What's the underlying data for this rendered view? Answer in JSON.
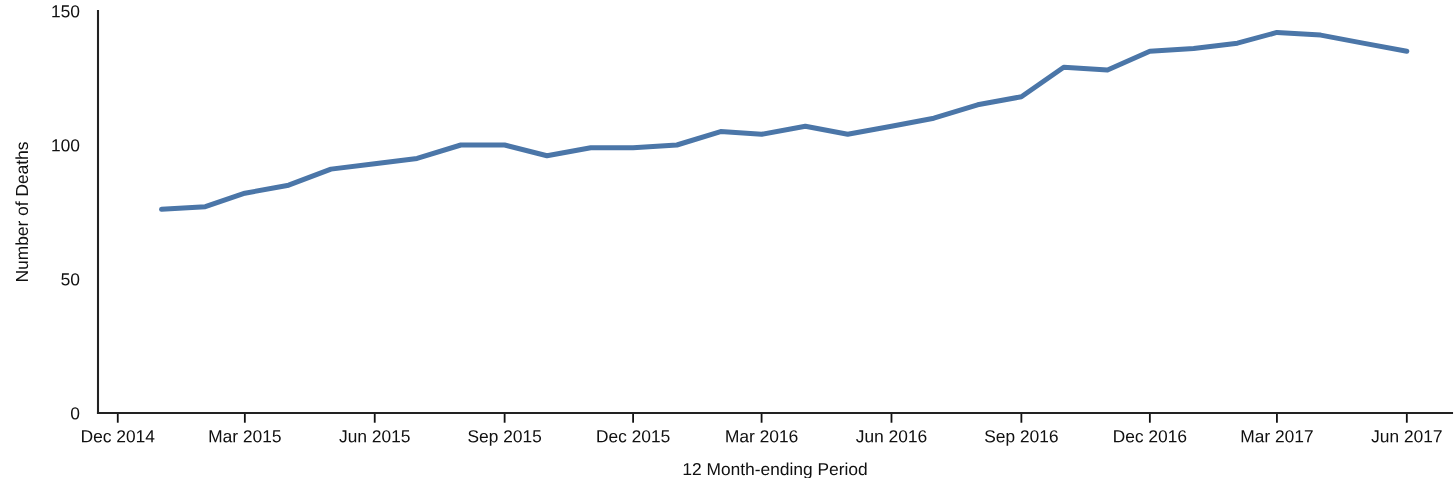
{
  "chart_data": {
    "type": "line",
    "xlabel": "12 Month-ending Period",
    "ylabel": "Number of Deaths",
    "x": [
      "2015-01",
      "2015-02",
      "2015-03",
      "2015-04",
      "2015-05",
      "2015-06",
      "2015-07",
      "2015-08",
      "2015-09",
      "2015-10",
      "2015-11",
      "2015-12",
      "2016-01",
      "2016-02",
      "2016-03",
      "2016-04",
      "2016-05",
      "2016-06",
      "2016-07",
      "2016-08",
      "2016-09",
      "2016-10",
      "2016-11",
      "2016-12",
      "2017-01",
      "2017-02",
      "2017-03",
      "2017-04",
      "2017-05",
      "2017-06"
    ],
    "series": [
      {
        "color": "#4b76a8",
        "values": [
          76,
          77,
          82,
          85,
          91,
          93,
          95,
          100,
          100,
          96,
          99,
          99,
          100,
          105,
          104,
          107,
          104,
          107,
          110,
          115,
          118,
          129,
          128,
          135,
          136,
          138,
          142,
          141,
          138,
          135
        ]
      }
    ],
    "xlim": [
      "2014-11-17",
      "2017-07-03"
    ],
    "xticks": [
      {
        "value": "2014-12",
        "label": "Dec 2014"
      },
      {
        "value": "2015-03",
        "label": "Mar 2015"
      },
      {
        "value": "2015-06",
        "label": "Jun 2015"
      },
      {
        "value": "2015-09",
        "label": "Sep 2015"
      },
      {
        "value": "2015-12",
        "label": "Dec 2015"
      },
      {
        "value": "2016-03",
        "label": "Mar 2016"
      },
      {
        "value": "2016-06",
        "label": "Jun 2016"
      },
      {
        "value": "2016-09",
        "label": "Sep 2016"
      },
      {
        "value": "2016-12",
        "label": "Dec 2016"
      },
      {
        "value": "2017-03",
        "label": "Mar 2017"
      },
      {
        "value": "2017-06",
        "label": "Jun 2017"
      }
    ],
    "ylim": [
      0,
      150
    ],
    "yticks": [
      0,
      50,
      100,
      150
    ],
    "marker": "none",
    "line_style": "solid"
  }
}
